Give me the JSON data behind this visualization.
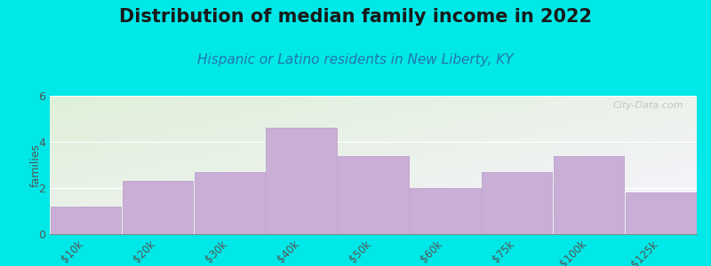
{
  "title": "Distribution of median family income in 2022",
  "subtitle": "Hispanic or Latino residents in New Liberty, KY",
  "categories": [
    "$10k",
    "$20k",
    "$30k",
    "$40k",
    "$50k",
    "$60k",
    "$75k",
    "$100k",
    ">$125k"
  ],
  "values": [
    1.2,
    2.3,
    2.7,
    4.6,
    3.4,
    2.0,
    2.7,
    3.4,
    1.8
  ],
  "bar_color": "#c9aed6",
  "bar_edge_color": "#b899cc",
  "bg_outer": "#00e8e8",
  "bg_plot_top_left": "#dff0d8",
  "bg_plot_bottom_right": "#f0ecf8",
  "ylabel": "families",
  "ylim": [
    0,
    6
  ],
  "yticks": [
    0,
    2,
    4,
    6
  ],
  "title_fontsize": 15,
  "subtitle_fontsize": 11,
  "watermark": "City-Data.com",
  "watermark_color": "#bbbbbb"
}
